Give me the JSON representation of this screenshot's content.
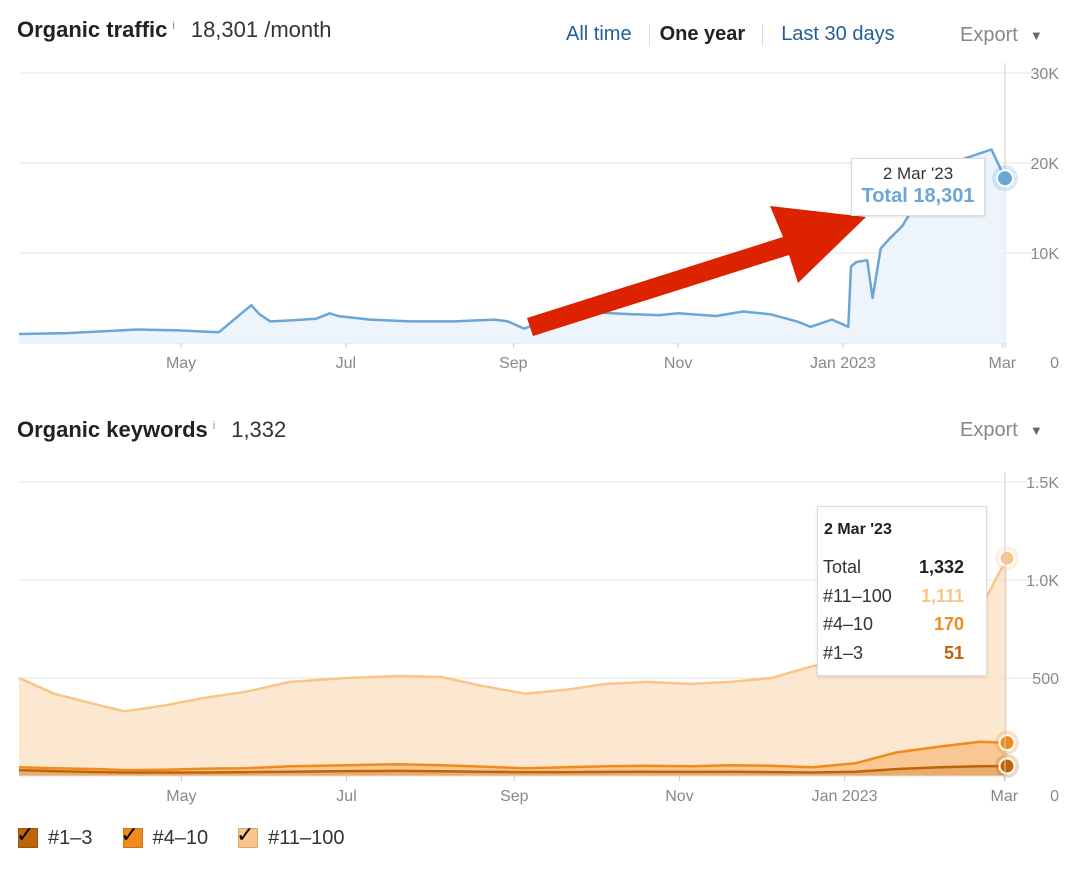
{
  "traffic": {
    "title": "Organic traffic",
    "info": "i",
    "value": "18,301 /month",
    "ranges": [
      "All time",
      "One year",
      "Last 30 days"
    ],
    "active_range": "One year",
    "export_label": "Export",
    "tooltip": {
      "date": "2 Mar '23",
      "total": "Total 18,301"
    }
  },
  "keywords": {
    "title": "Organic keywords",
    "info": "i",
    "value": "1,332",
    "export_label": "Export",
    "tooltip": {
      "date": "2 Mar '23",
      "rows": [
        {
          "label": "Total",
          "value": "1,332",
          "color": "#222222"
        },
        {
          "label": "#11–100",
          "value": "1,111",
          "color": "#f9c58a"
        },
        {
          "label": "#4–10",
          "value": "170",
          "color": "#f08a1c"
        },
        {
          "label": "#1–3",
          "value": "51",
          "color": "#c0640a"
        }
      ]
    }
  },
  "legend": [
    {
      "label": "#1–3",
      "color": "#c0640a"
    },
    {
      "label": "#4–10",
      "color": "#f08a1c"
    },
    {
      "label": "#11–100",
      "color": "#f9c58a"
    }
  ],
  "colors": {
    "traffic_line": "#6aa6d6",
    "traffic_fill": "#edf4fc",
    "arrow": "#dd2200"
  },
  "chart_data": [
    {
      "type": "line",
      "x_ticks": [
        "May",
        "Jul",
        "Sep",
        "Nov",
        "Jan 2023",
        "Mar"
      ],
      "y_ticks": [
        "0",
        "10K",
        "20K",
        "30K"
      ],
      "ylim": [
        0,
        30000
      ],
      "xlim": [
        "2022-03-02",
        "2023-03-02"
      ],
      "series": [
        {
          "x": [
            "2022-03-02",
            "2022-03-20",
            "2022-04-15",
            "2022-04-30",
            "2022-05-15",
            "2022-05-27",
            "2022-05-30",
            "2022-06-03",
            "2022-06-10",
            "2022-06-20",
            "2022-06-25",
            "2022-06-28",
            "2022-07-10",
            "2022-07-25",
            "2022-08-10",
            "2022-08-25",
            "2022-08-30",
            "2022-09-05",
            "2022-09-10",
            "2022-09-20",
            "2022-10-01",
            "2022-10-15",
            "2022-10-25",
            "2022-11-01",
            "2022-11-15",
            "2022-11-25",
            "2022-12-05",
            "2022-12-15",
            "2022-12-20",
            "2022-12-28",
            "2023-01-03",
            "2023-01-04",
            "2023-01-06",
            "2023-01-10",
            "2023-01-12",
            "2023-01-15",
            "2023-01-18",
            "2023-01-23",
            "2023-01-28",
            "2023-02-02",
            "2023-02-05",
            "2023-02-10",
            "2023-02-15",
            "2023-02-20",
            "2023-02-25",
            "2023-03-02"
          ],
          "y": [
            1000,
            1100,
            1500,
            1400,
            1200,
            4200,
            3200,
            2400,
            2500,
            2700,
            3300,
            3000,
            2600,
            2400,
            2400,
            2600,
            2400,
            1600,
            2200,
            3100,
            3400,
            3200,
            3100,
            3300,
            3000,
            3500,
            3200,
            2400,
            1800,
            2600,
            1800,
            8500,
            9000,
            9200,
            5000,
            10500,
            11500,
            13000,
            15500,
            18000,
            19000,
            20000,
            20500,
            21000,
            21500,
            18301
          ]
        }
      ],
      "tooltip": {
        "date": "2 Mar '23",
        "Total": 18301
      }
    },
    {
      "type": "area",
      "x_ticks": [
        "May",
        "Jul",
        "Sep",
        "Nov",
        "Jan 2023",
        "Mar"
      ],
      "y_ticks": [
        "0",
        "500",
        "1.0K",
        "1.5K"
      ],
      "ylim": [
        0,
        1500
      ],
      "xlim": [
        "2022-03-02",
        "2023-03-02"
      ],
      "x": [
        "2022-03-02",
        "2022-03-15",
        "2022-04-01",
        "2022-04-10",
        "2022-04-25",
        "2022-05-10",
        "2022-05-25",
        "2022-06-10",
        "2022-07-01",
        "2022-07-20",
        "2022-08-05",
        "2022-08-20",
        "2022-09-05",
        "2022-09-20",
        "2022-10-05",
        "2022-10-20",
        "2022-11-05",
        "2022-11-20",
        "2022-12-05",
        "2022-12-20",
        "2023-01-05",
        "2023-01-20",
        "2023-02-05",
        "2023-02-20",
        "2023-03-02"
      ],
      "series": [
        {
          "name": "#1–3",
          "values": [
            30,
            25,
            20,
            18,
            18,
            18,
            20,
            22,
            25,
            26,
            24,
            22,
            20,
            20,
            21,
            22,
            21,
            22,
            20,
            18,
            22,
            35,
            45,
            50,
            51
          ]
        },
        {
          "name": "#4–10",
          "values": [
            45,
            40,
            35,
            30,
            32,
            38,
            40,
            50,
            55,
            60,
            55,
            48,
            40,
            45,
            50,
            52,
            50,
            55,
            52,
            45,
            65,
            120,
            150,
            175,
            170
          ]
        },
        {
          "name": "#11–100",
          "values": [
            500,
            420,
            360,
            330,
            360,
            400,
            430,
            480,
            500,
            510,
            505,
            460,
            420,
            440,
            470,
            480,
            470,
            480,
            500,
            560,
            600,
            680,
            780,
            850,
            1111
          ]
        }
      ],
      "tooltip": {
        "date": "2 Mar '23",
        "Total": 1332,
        "#11–100": 1111,
        "#4–10": 170,
        "#1–3": 51
      }
    }
  ]
}
